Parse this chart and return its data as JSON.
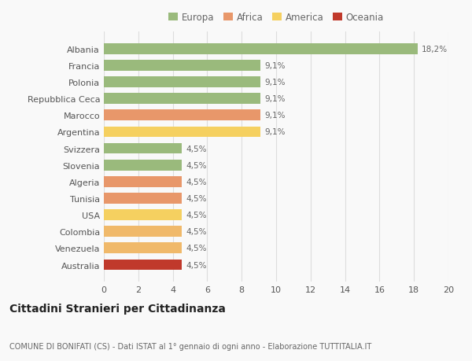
{
  "categories": [
    "Australia",
    "Venezuela",
    "Colombia",
    "USA",
    "Tunisia",
    "Algeria",
    "Slovenia",
    "Svizzera",
    "Argentina",
    "Marocco",
    "Repubblica Ceca",
    "Polonia",
    "Francia",
    "Albania"
  ],
  "values": [
    4.5,
    4.5,
    4.5,
    4.5,
    4.5,
    4.5,
    4.5,
    4.5,
    9.1,
    9.1,
    9.1,
    9.1,
    9.1,
    18.2
  ],
  "labels": [
    "4,5%",
    "4,5%",
    "4,5%",
    "4,5%",
    "4,5%",
    "4,5%",
    "4,5%",
    "4,5%",
    "9,1%",
    "9,1%",
    "9,1%",
    "9,1%",
    "9,1%",
    "18,2%"
  ],
  "colors": [
    "#c0392b",
    "#f0b96a",
    "#f0b96a",
    "#f5d060",
    "#e8976a",
    "#e8976a",
    "#9aba7c",
    "#9aba7c",
    "#f5d060",
    "#e8976a",
    "#9aba7c",
    "#9aba7c",
    "#9aba7c",
    "#9aba7c"
  ],
  "legend": [
    {
      "label": "Europa",
      "color": "#9aba7c"
    },
    {
      "label": "Africa",
      "color": "#e8976a"
    },
    {
      "label": "America",
      "color": "#f5d060"
    },
    {
      "label": "Oceania",
      "color": "#c0392b"
    }
  ],
  "xlim": [
    0,
    20
  ],
  "xticks": [
    0,
    2,
    4,
    6,
    8,
    10,
    12,
    14,
    16,
    18,
    20
  ],
  "title": "Cittadini Stranieri per Cittadinanza",
  "subtitle": "COMUNE DI BONIFATI (CS) - Dati ISTAT al 1° gennaio di ogni anno - Elaborazione TUTTITALIA.IT",
  "bg_color": "#f9f9f9",
  "grid_color": "#dddddd",
  "bar_height": 0.65,
  "label_fontsize": 7.5,
  "title_fontsize": 10,
  "subtitle_fontsize": 7,
  "tick_fontsize": 8,
  "legend_fontsize": 8.5
}
